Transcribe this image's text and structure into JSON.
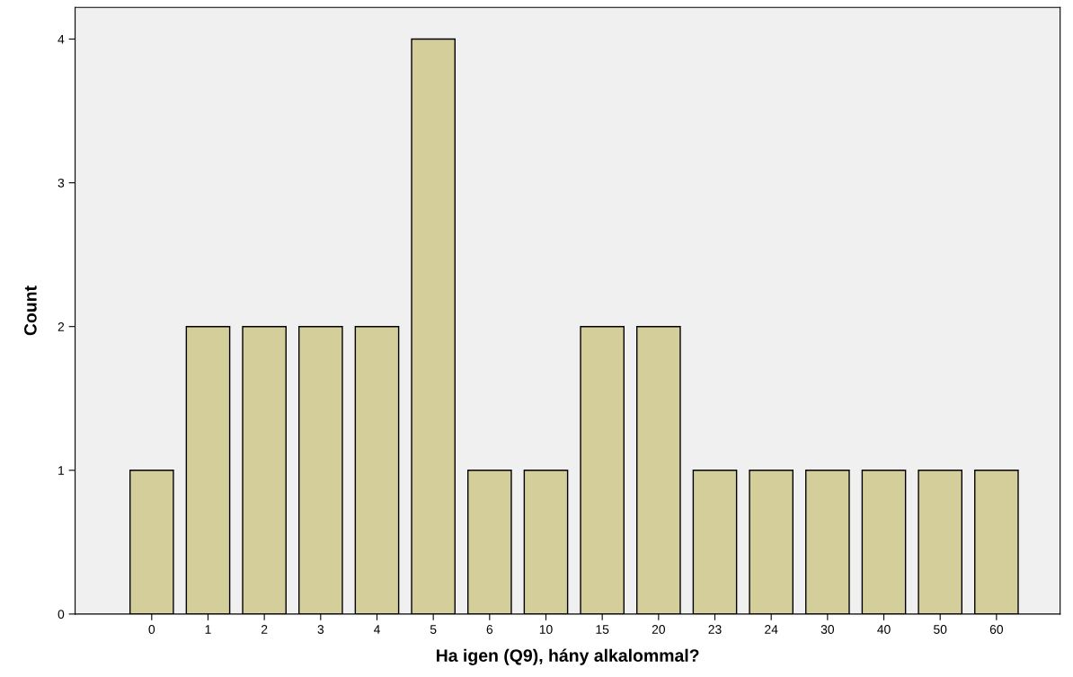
{
  "chart_data": {
    "type": "bar",
    "xlabel": "Ha igen (Q9), hány alkalommal?",
    "ylabel": "Count",
    "categories": [
      "0",
      "1",
      "2",
      "3",
      "4",
      "5",
      "6",
      "10",
      "15",
      "20",
      "23",
      "24",
      "30",
      "40",
      "50",
      "60"
    ],
    "values": [
      1,
      2,
      2,
      2,
      2,
      4,
      1,
      1,
      2,
      2,
      1,
      1,
      1,
      1,
      1,
      1
    ],
    "color": "#d3ce9a",
    "ylim": [
      0,
      4.22
    ],
    "yticks": [
      0,
      1,
      2,
      3,
      4
    ],
    "grid": false
  }
}
